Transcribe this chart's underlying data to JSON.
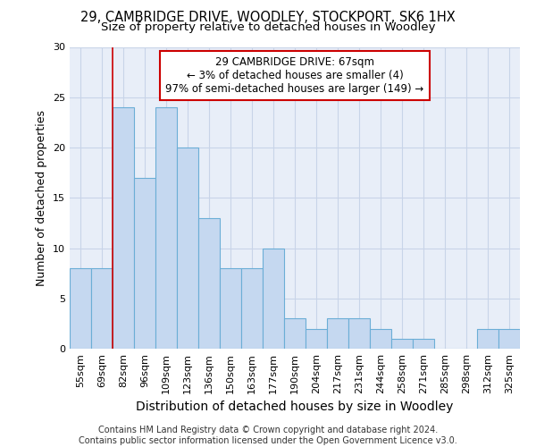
{
  "title_line1": "29, CAMBRIDGE DRIVE, WOODLEY, STOCKPORT, SK6 1HX",
  "title_line2": "Size of property relative to detached houses in Woodley",
  "xlabel": "Distribution of detached houses by size in Woodley",
  "ylabel": "Number of detached properties",
  "footnote": "Contains HM Land Registry data © Crown copyright and database right 2024.\nContains public sector information licensed under the Open Government Licence v3.0.",
  "bar_labels": [
    "55sqm",
    "69sqm",
    "82sqm",
    "96sqm",
    "109sqm",
    "123sqm",
    "136sqm",
    "150sqm",
    "163sqm",
    "177sqm",
    "190sqm",
    "204sqm",
    "217sqm",
    "231sqm",
    "244sqm",
    "258sqm",
    "271sqm",
    "285sqm",
    "298sqm",
    "312sqm",
    "325sqm"
  ],
  "bar_values": [
    8,
    8,
    24,
    17,
    24,
    20,
    13,
    8,
    8,
    10,
    3,
    2,
    3,
    3,
    2,
    1,
    1,
    0,
    0,
    2,
    2
  ],
  "bar_color": "#c5d8f0",
  "bar_edge_color": "#6baed6",
  "annotation_text": "29 CAMBRIDGE DRIVE: 67sqm\n← 3% of detached houses are smaller (4)\n97% of semi-detached houses are larger (149) →",
  "annotation_box_color": "#ffffff",
  "annotation_box_edge_color": "#cc0000",
  "vline_x": 1.5,
  "vline_color": "#cc0000",
  "ylim": [
    0,
    30
  ],
  "yticks": [
    0,
    5,
    10,
    15,
    20,
    25,
    30
  ],
  "grid_color": "#c8d4e8",
  "bg_color": "#e8eef8",
  "title_fontsize": 10.5,
  "subtitle_fontsize": 9.5,
  "tick_fontsize": 8,
  "ylabel_fontsize": 9,
  "xlabel_fontsize": 10,
  "footnote_fontsize": 7,
  "annotation_fontsize": 8.5
}
